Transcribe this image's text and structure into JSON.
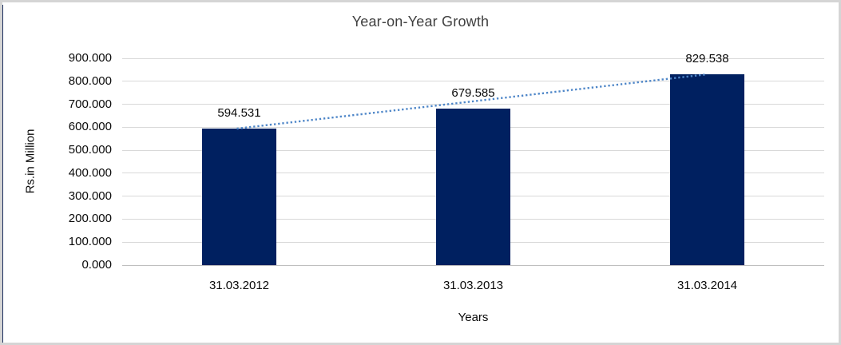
{
  "window": {
    "background": "#ffffff",
    "frame_border_color": "#d5d5d5",
    "left_accent_color": "#1c2e5e"
  },
  "chart_data": {
    "type": "bar",
    "title": "Year-on-Year Growth",
    "xlabel": "Years",
    "ylabel": "Rs.in Million",
    "categories": [
      "31.03.2012",
      "31.03.2013",
      "31.03.2014"
    ],
    "values": [
      594.531,
      679.585,
      829.538
    ],
    "data_labels": [
      "594.531",
      "679.585",
      "829.538"
    ],
    "ylim": [
      0,
      900
    ],
    "ytick_step": 100,
    "ytick_labels": [
      "0.000",
      "100.000",
      "200.000",
      "300.000",
      "400.000",
      "500.000",
      "600.000",
      "700.000",
      "800.000",
      "900.000"
    ],
    "grid": true,
    "legend": "none",
    "bar_color": "#002060",
    "gridline_color": "#d9d9d9",
    "trendline": {
      "type": "linear",
      "style": "dotted",
      "color": "#4e86c8"
    }
  }
}
